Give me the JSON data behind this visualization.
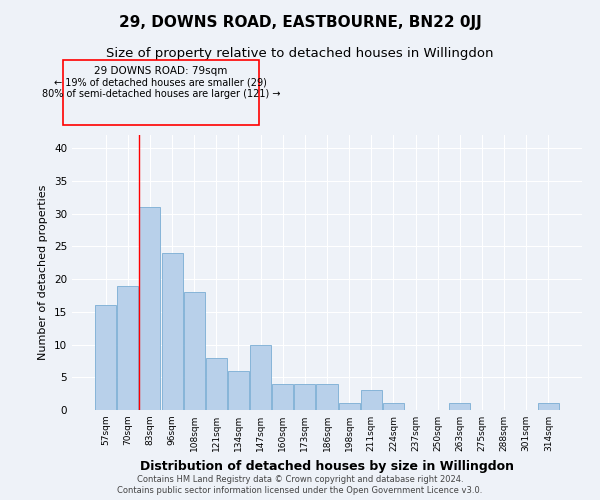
{
  "title": "29, DOWNS ROAD, EASTBOURNE, BN22 0JJ",
  "subtitle": "Size of property relative to detached houses in Willingdon",
  "xlabel": "Distribution of detached houses by size in Willingdon",
  "ylabel": "Number of detached properties",
  "categories": [
    "57sqm",
    "70sqm",
    "83sqm",
    "96sqm",
    "108sqm",
    "121sqm",
    "134sqm",
    "147sqm",
    "160sqm",
    "173sqm",
    "186sqm",
    "198sqm",
    "211sqm",
    "224sqm",
    "237sqm",
    "250sqm",
    "263sqm",
    "275sqm",
    "288sqm",
    "301sqm",
    "314sqm"
  ],
  "values": [
    16,
    19,
    31,
    24,
    18,
    8,
    6,
    10,
    4,
    4,
    4,
    1,
    3,
    1,
    0,
    0,
    1,
    0,
    0,
    0,
    1
  ],
  "bar_color": "#b8d0ea",
  "bar_edge_color": "#7aadd4",
  "red_line_index": 2,
  "ylim": [
    0,
    42
  ],
  "yticks": [
    0,
    5,
    10,
    15,
    20,
    25,
    30,
    35,
    40
  ],
  "annotation_title": "29 DOWNS ROAD: 79sqm",
  "annotation_line1": "← 19% of detached houses are smaller (29)",
  "annotation_line2": "80% of semi-detached houses are larger (121) →",
  "footer_line1": "Contains HM Land Registry data © Crown copyright and database right 2024.",
  "footer_line2": "Contains public sector information licensed under the Open Government Licence v3.0.",
  "background_color": "#eef2f8",
  "title_fontsize": 11,
  "subtitle_fontsize": 9.5,
  "xlabel_fontsize": 9,
  "ylabel_fontsize": 8
}
